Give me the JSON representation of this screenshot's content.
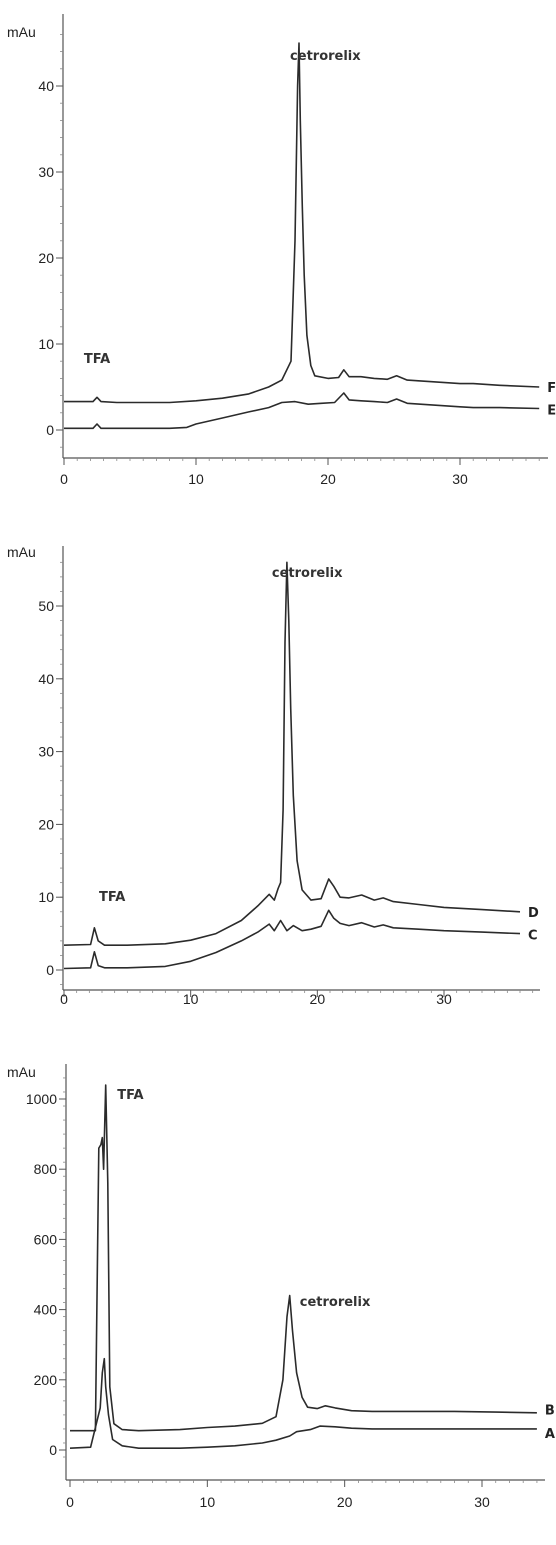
{
  "chart_data": [
    {
      "type": "line",
      "panel": "top",
      "ylabel": "mAu",
      "xlim": [
        0,
        36
      ],
      "ylim": [
        -2,
        47
      ],
      "x_ticks": [
        0,
        10,
        20,
        30
      ],
      "y_ticks": [
        0,
        10,
        20,
        30,
        40
      ],
      "annotations": [
        {
          "text": "cetrorelix",
          "x": 19.8,
          "y": 43
        },
        {
          "text": "TFA",
          "x": 2.5,
          "y": 7.8
        }
      ],
      "series": [
        {
          "name": "F",
          "x": [
            0,
            2.2,
            2.5,
            2.8,
            4,
            8,
            10,
            12,
            14,
            15.5,
            16.5,
            17.2,
            17.5,
            17.7,
            17.8,
            17.9,
            18.05,
            18.2,
            18.4,
            18.7,
            19,
            20,
            20.8,
            21.2,
            21.6,
            22.5,
            23.5,
            24.5,
            25.2,
            26,
            28,
            30,
            31,
            33,
            36
          ],
          "y": [
            3.3,
            3.3,
            3.8,
            3.3,
            3.2,
            3.2,
            3.4,
            3.7,
            4.2,
            5.0,
            5.8,
            8,
            22,
            40,
            45,
            36,
            26,
            18,
            11,
            7.5,
            6.3,
            6.0,
            6.1,
            7.0,
            6.2,
            6.2,
            6.0,
            5.9,
            6.3,
            5.8,
            5.6,
            5.4,
            5.4,
            5.2,
            5.0
          ],
          "label_y": 5.0
        },
        {
          "name": "E",
          "x": [
            0,
            2.2,
            2.5,
            2.8,
            4,
            8,
            9.3,
            10,
            12,
            14,
            15.5,
            16.5,
            17.5,
            18.5,
            19.5,
            20.5,
            21.2,
            21.6,
            22.5,
            23.5,
            24.5,
            25.2,
            26,
            28,
            30,
            31,
            33,
            36
          ],
          "y": [
            0.2,
            0.2,
            0.7,
            0.2,
            0.2,
            0.2,
            0.3,
            0.7,
            1.4,
            2.1,
            2.6,
            3.2,
            3.3,
            3.0,
            3.1,
            3.2,
            4.3,
            3.5,
            3.4,
            3.3,
            3.2,
            3.6,
            3.1,
            2.9,
            2.7,
            2.6,
            2.6,
            2.5
          ],
          "label_y": 2.4
        }
      ]
    },
    {
      "type": "line",
      "panel": "middle",
      "ylabel": "mAu",
      "xlim": [
        0,
        37
      ],
      "ylim": [
        -2,
        57
      ],
      "x_ticks": [
        0,
        10,
        20,
        30
      ],
      "y_ticks": [
        0,
        10,
        20,
        30,
        40,
        50
      ],
      "annotations": [
        {
          "text": "cetrorelix",
          "x": 19.2,
          "y": 54
        },
        {
          "text": "TFA",
          "x": 3.8,
          "y": 9.5
        }
      ],
      "series": [
        {
          "name": "D",
          "x": [
            0,
            2.1,
            2.4,
            2.7,
            3.2,
            5,
            8,
            10,
            12,
            14,
            15.3,
            16.2,
            16.6,
            16.9,
            17.1,
            17.3,
            17.45,
            17.6,
            17.75,
            17.9,
            18.1,
            18.4,
            18.8,
            19.5,
            20.3,
            20.9,
            21.3,
            21.8,
            22.5,
            23.5,
            24.5,
            25.2,
            26,
            28,
            30,
            33,
            36
          ],
          "y": [
            3.4,
            3.5,
            5.8,
            4.0,
            3.4,
            3.4,
            3.6,
            4.1,
            5.0,
            6.8,
            8.8,
            10.4,
            9.6,
            11.2,
            12,
            22,
            45,
            56,
            48,
            36,
            24,
            15,
            11,
            9.6,
            9.8,
            12.5,
            11.5,
            10,
            9.9,
            10.3,
            9.6,
            9.9,
            9.4,
            9.0,
            8.6,
            8.3,
            8.0
          ],
          "label_y": 8.0
        },
        {
          "name": "C",
          "x": [
            0,
            2.1,
            2.4,
            2.7,
            3.2,
            5,
            8,
            10,
            12,
            14,
            15.3,
            16.2,
            16.6,
            17.1,
            17.6,
            18.1,
            18.8,
            19.5,
            20.3,
            20.9,
            21.3,
            21.8,
            22.5,
            23.5,
            24.5,
            25.2,
            26,
            28,
            30,
            33,
            36
          ],
          "y": [
            0.2,
            0.3,
            2.5,
            0.6,
            0.3,
            0.3,
            0.5,
            1.2,
            2.4,
            4.0,
            5.2,
            6.3,
            5.4,
            6.8,
            5.4,
            6.1,
            5.4,
            5.6,
            6.0,
            8.2,
            7.1,
            6.4,
            6.1,
            6.5,
            5.9,
            6.2,
            5.8,
            5.6,
            5.4,
            5.2,
            5.0
          ],
          "label_y": 4.9
        }
      ]
    },
    {
      "type": "line",
      "panel": "bottom",
      "ylabel": "mAu",
      "xlim": [
        0,
        34.5
      ],
      "ylim": [
        -20,
        1060
      ],
      "x_ticks": [
        0,
        10,
        20,
        30
      ],
      "y_ticks": [
        0,
        200,
        400,
        600,
        800,
        1000
      ],
      "annotations": [
        {
          "text": "TFA",
          "x": 4.4,
          "y": 1000
        },
        {
          "text": "cetrorelix",
          "x": 19.3,
          "y": 410
        }
      ],
      "series": [
        {
          "name": "B",
          "x": [
            0,
            1.85,
            2.1,
            2.25,
            2.35,
            2.45,
            2.6,
            2.75,
            2.9,
            3.2,
            3.8,
            5,
            8,
            10,
            12,
            14,
            15,
            15.5,
            15.8,
            16.0,
            16.2,
            16.5,
            16.9,
            17.3,
            18,
            18.6,
            19.3,
            20.5,
            22,
            25,
            28,
            31,
            34
          ],
          "y": [
            55,
            55,
            860,
            870,
            890,
            800,
            1040,
            760,
            180,
            75,
            58,
            55,
            58,
            64,
            68,
            76,
            95,
            200,
            380,
            440,
            340,
            220,
            150,
            122,
            118,
            126,
            120,
            112,
            110,
            110,
            110,
            108,
            106
          ],
          "label_y": 115
        },
        {
          "name": "A",
          "x": [
            0,
            1.5,
            2.2,
            2.35,
            2.5,
            2.6,
            2.8,
            3.1,
            3.8,
            5,
            8,
            10,
            12,
            14,
            15,
            16,
            16.5,
            17.5,
            18.2,
            19.3,
            20.5,
            22,
            25,
            28,
            31,
            34
          ],
          "y": [
            5,
            8,
            120,
            220,
            260,
            180,
            100,
            30,
            12,
            5,
            5,
            8,
            12,
            20,
            28,
            40,
            52,
            58,
            68,
            66,
            62,
            60,
            60,
            60,
            60,
            60
          ],
          "label_y": 48
        }
      ]
    }
  ]
}
